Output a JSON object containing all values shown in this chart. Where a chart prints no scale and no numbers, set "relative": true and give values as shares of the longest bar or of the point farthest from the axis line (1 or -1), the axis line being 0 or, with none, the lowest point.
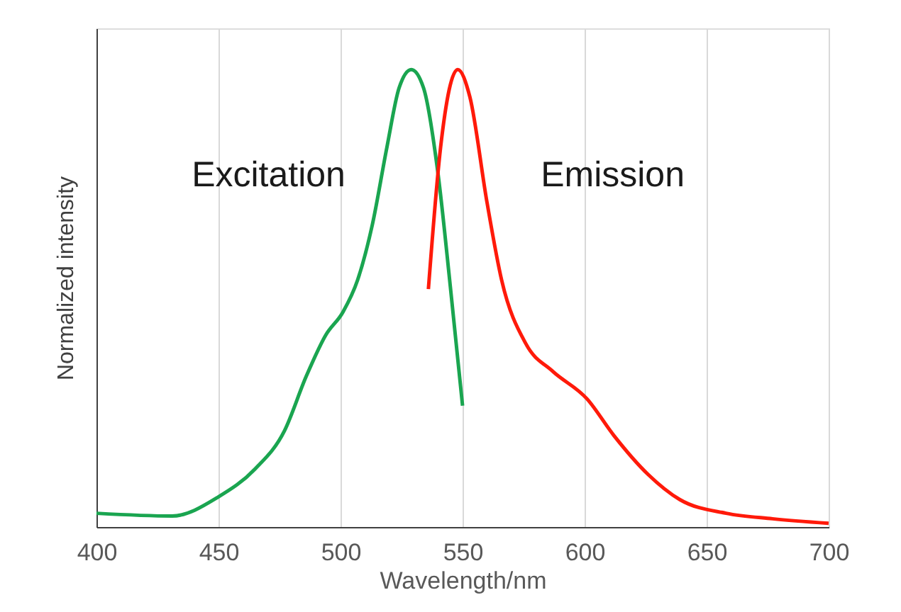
{
  "chart_data": {
    "type": "line",
    "xlabel": "Wavelength/nm",
    "ylabel": "Normalized intensity",
    "relative": true,
    "xlim": [
      400,
      700
    ],
    "xticks": [
      400,
      450,
      500,
      550,
      600,
      650,
      700
    ],
    "grid": "x",
    "legend": false,
    "marker": "none",
    "line_style": "solid",
    "series": [
      {
        "name": "Excitation",
        "color": "#1aa550",
        "x": [
          400,
          431,
          450,
          465,
          477,
          486,
          494,
          501,
          507,
          513,
          519,
          524,
          529,
          534,
          540,
          545,
          550
        ],
        "values": [
          0.03,
          0.024,
          0.066,
          0.127,
          0.21,
          0.33,
          0.42,
          0.47,
          0.54,
          0.66,
          0.83,
          0.96,
          1.0,
          0.96,
          0.77,
          0.525,
          0.265
        ]
      },
      {
        "name": "Emission",
        "color": "#ff1a0a",
        "x": [
          536,
          541,
          548,
          553,
          560,
          566,
          576,
          587,
          601,
          612,
          626,
          639,
          658,
          677,
          700
        ],
        "values": [
          0.52,
          0.83,
          1.0,
          0.94,
          0.71,
          0.54,
          0.4,
          0.34,
          0.28,
          0.2,
          0.115,
          0.06,
          0.03,
          0.018,
          0.008
        ]
      }
    ]
  }
}
